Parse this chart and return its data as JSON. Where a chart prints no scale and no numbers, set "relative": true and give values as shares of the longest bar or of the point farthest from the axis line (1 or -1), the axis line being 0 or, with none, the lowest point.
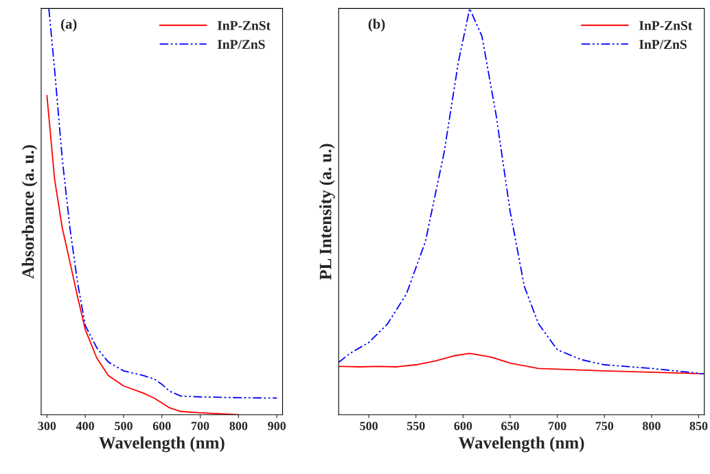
{
  "chart_data": [
    {
      "type": "line",
      "relative": true,
      "xlabel": "Wavelength (nm)",
      "ylabel": "Absorbance (a. u.)",
      "annotations": [
        "(a)"
      ],
      "xlim": [
        285,
        915
      ],
      "xticks": [
        300,
        400,
        500,
        600,
        700,
        800,
        900
      ],
      "tick_labels": "x",
      "legend": "top right",
      "grid": false,
      "series": [
        {
          "name": "InP-ZnSt",
          "color": "#ff0000",
          "line_style": "solid",
          "x": [
            300,
            320,
            340,
            360,
            380,
            400,
            430,
            460,
            500,
            550,
            580,
            600,
            620,
            650,
            700,
            800
          ],
          "values": [
            0.786,
            0.58,
            0.46,
            0.376,
            0.29,
            0.21,
            0.14,
            0.097,
            0.071,
            0.054,
            0.041,
            0.029,
            0.017,
            0.008,
            0.005,
            0
          ]
        },
        {
          "name": "InP/ZnS",
          "color": "#0000ff",
          "line_style": "dashed",
          "x": [
            305,
            320,
            340,
            360,
            380,
            400,
            430,
            460,
            500,
            550,
            580,
            600,
            620,
            650,
            700,
            800,
            900
          ],
          "values": [
            1.0,
            0.85,
            0.63,
            0.46,
            0.325,
            0.22,
            0.165,
            0.13,
            0.108,
            0.097,
            0.088,
            0.075,
            0.058,
            0.046,
            0.044,
            0.042,
            0.041
          ]
        }
      ]
    },
    {
      "type": "line",
      "relative": true,
      "xlabel": "Wavelength (nm)",
      "ylabel": "PL Intensity (a. u.)",
      "annotations": [
        "(b)"
      ],
      "xlim": [
        468,
        856
      ],
      "xticks": [
        500,
        550,
        600,
        650,
        700,
        750,
        800,
        850
      ],
      "tick_labels": "x",
      "legend": "top right",
      "grid": false,
      "series": [
        {
          "name": "InP-ZnSt",
          "color": "#ff0000",
          "line_style": "solid",
          "x": [
            468,
            490,
            510,
            530,
            550,
            570,
            590,
            607,
            630,
            650,
            680,
            750,
            855
          ],
          "values": [
            0.119,
            0.118,
            0.119,
            0.118,
            0.123,
            0.132,
            0.145,
            0.151,
            0.142,
            0.127,
            0.114,
            0.108,
            0.101
          ]
        },
        {
          "name": "InP/ZnS",
          "color": "#0000ff",
          "line_style": "dashed",
          "x": [
            468,
            480,
            500,
            520,
            540,
            560,
            580,
            595,
            607,
            620,
            635,
            650,
            665,
            680,
            700,
            725,
            750,
            800,
            855
          ],
          "values": [
            0.129,
            0.151,
            0.178,
            0.224,
            0.298,
            0.426,
            0.647,
            0.868,
            1.0,
            0.932,
            0.739,
            0.5,
            0.316,
            0.224,
            0.16,
            0.136,
            0.123,
            0.114,
            0.101
          ]
        }
      ]
    }
  ]
}
